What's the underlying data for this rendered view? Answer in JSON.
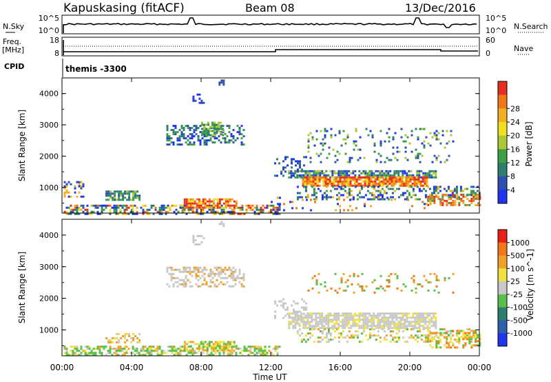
{
  "header": {
    "station": "Kapuskasing (fitACF)",
    "beam": "Beam 08",
    "date": "13/Dec/2016"
  },
  "top_panels": {
    "nsky_label": "N.Sky",
    "nsky_tick_top": "10^5",
    "nsky_tick_bottom": "10^0",
    "nsearch_label": "N.Search",
    "nsearch_tick_top": "10^5",
    "nsearch_tick_bottom": "10^0",
    "freq_label": "Freq.",
    "freq_unit": "[MHz]",
    "freq_tick_top": "18",
    "freq_tick_bottom": "8",
    "nave_label": "Nave",
    "nave_tick_top": "60",
    "nave_tick_bottom": "0",
    "cpid_label": "CPID",
    "cpid_value": "themis -3300"
  },
  "chart_data": [
    {
      "type": "heatmap",
      "name": "power",
      "ylabel": "Slant Range [km]",
      "ylim": [
        180,
        4500
      ],
      "yticks": [
        "1000",
        "2000",
        "3000",
        "4000"
      ],
      "colorbar_label": "Power [dB]",
      "colorbar_ticks": [
        "4",
        "8",
        "12",
        "16",
        "20",
        "24",
        "28"
      ],
      "colorbar_colors": [
        "#1f35f0",
        "#2f4fb0",
        "#2f7f6f",
        "#3ea045",
        "#a8c838",
        "#f0e020",
        "#f0b020",
        "#f07818",
        "#e83020"
      ]
    },
    {
      "type": "heatmap",
      "name": "velocity",
      "ylabel": "Slant Range [km]",
      "ylim": [
        180,
        4500
      ],
      "yticks": [
        "1000",
        "2000",
        "3000",
        "4000"
      ],
      "colorbar_label": "Velocity [m s^-1]",
      "colorbar_ticks": [
        "1000",
        "500",
        "100",
        "25",
        "-25",
        "-100",
        "-500",
        "-1000"
      ],
      "colorbar_colors": [
        "#1f35f0",
        "#2f5fa8",
        "#2f7f70",
        "#58c048",
        "#c8c8c8",
        "#f0e040",
        "#f0a028",
        "#f07818",
        "#e82018"
      ]
    }
  ],
  "x_axis": {
    "ticks": [
      "00:00",
      "04:00",
      "08:00",
      "12:00",
      "16:00",
      "20:00",
      "00:00"
    ],
    "label": "Time UT"
  }
}
